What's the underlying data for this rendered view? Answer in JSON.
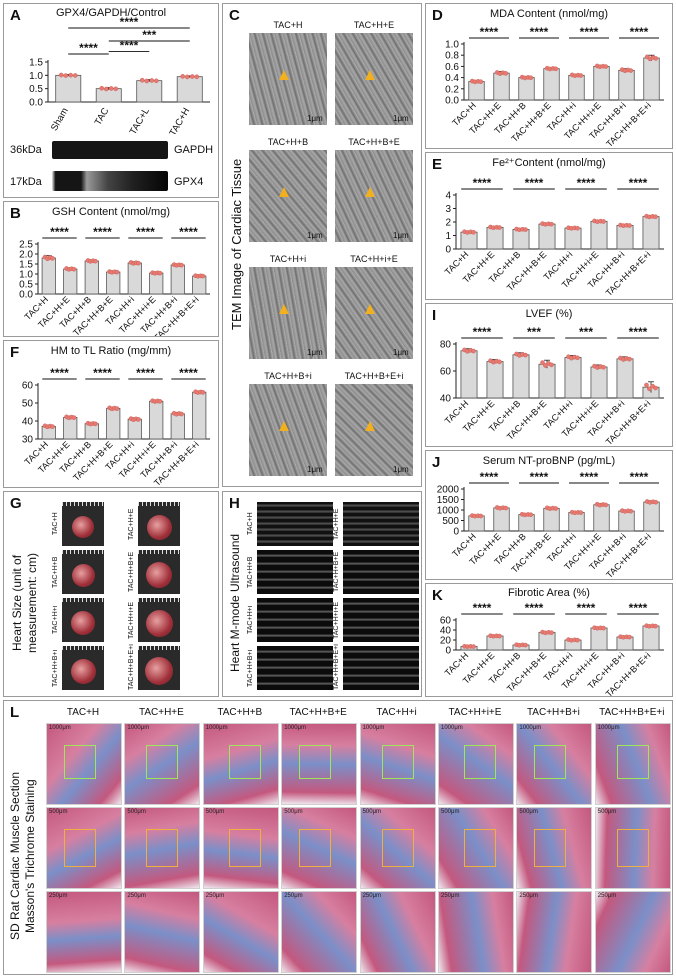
{
  "panels": {
    "A": {
      "letter": "A",
      "title": "GPX4/GAPDH/Control",
      "wb_kda_top": "36kDa",
      "wb_kda_bottom": "17kDa",
      "wb_label_top": "GAPDH",
      "wb_label_bottom": "GPX4"
    },
    "B": {
      "letter": "B"
    },
    "C": {
      "letter": "C",
      "side_title": "TEM Image of Cardiac Tissue",
      "tiles": [
        "TAC+H",
        "TAC+H+E",
        "TAC+H+B",
        "TAC+H+B+E",
        "TAC+H+i",
        "TAC+H+i+E",
        "TAC+H+B+i",
        "TAC+H+B+E+i"
      ],
      "scale_text": "1μm"
    },
    "D": {
      "letter": "D"
    },
    "E": {
      "letter": "E"
    },
    "F": {
      "letter": "F"
    },
    "G": {
      "letter": "G",
      "side_title": "Heart Size (unit of measurement: cm)",
      "tiles": [
        "TAC+H",
        "TAC+H+E",
        "TAC+H+B",
        "TAC+H+B+E",
        "TAC+H+i",
        "TAC+H+i+E",
        "TAC+H+B+i",
        "TAC+H+B+E+i"
      ]
    },
    "H": {
      "letter": "H",
      "side_title": "Heart M-mode Ultrasound",
      "tiles": [
        "TAC+H",
        "TAC+H+E",
        "TAC+H+B",
        "TAC+H+B+E",
        "TAC+H+i",
        "TAC+H+i+E",
        "TAC+H+B+i",
        "TAC+H+B+E+i"
      ]
    },
    "I": {
      "letter": "I"
    },
    "J": {
      "letter": "J"
    },
    "K": {
      "letter": "K"
    },
    "L": {
      "letter": "L",
      "side_title_1": "SD Rat Cardiac Muscle Section",
      "side_title_2": "Masson's Trichrome Staining",
      "columns": [
        "TAC+H",
        "TAC+H+E",
        "TAC+H+B",
        "TAC+H+B+E",
        "TAC+H+i",
        "TAC+H+i+E",
        "TAC+H+B+i",
        "TAC+H+B+E+i"
      ],
      "scales": [
        "1000μm",
        "500μm",
        "250μm"
      ]
    }
  },
  "colors": {
    "bar_fill": "#d9d9d9",
    "bar_stroke": "#555555",
    "dot": "#e87a72",
    "sig": "#111111",
    "masson_pink": "#c4587e",
    "masson_blue": "#7b8fc8",
    "box_green": "#9ee65a",
    "box_orange": "#f0b040"
  },
  "chart_data": [
    {
      "id": "A",
      "type": "bar",
      "title": "GPX4/GAPDH/Control",
      "categories": [
        "Sham",
        "TAC",
        "TAC+L",
        "TAC+H"
      ],
      "values": [
        1.0,
        0.5,
        0.8,
        0.95
      ],
      "errors": [
        0.03,
        0.04,
        0.04,
        0.03
      ],
      "ylim": [
        0,
        1.5
      ],
      "yticks": [
        0,
        0.5,
        1.0,
        1.5
      ],
      "ytick_labels": [
        "0.0",
        "0.5",
        "1.0",
        "1.5"
      ],
      "significance": [
        {
          "a": 0,
          "b": 1,
          "text": "****",
          "level": 0
        },
        {
          "a": 0,
          "b": 3,
          "text": "****",
          "level": 2
        },
        {
          "a": 1,
          "b": 3,
          "text": "***",
          "level": 1
        },
        {
          "a": 1,
          "b": 2,
          "text": "****",
          "level": 0.2
        }
      ]
    },
    {
      "id": "B",
      "type": "bar",
      "title": "GSH Content (nmol/mg)",
      "categories": [
        "TAC+H",
        "TAC+H+E",
        "TAC+H+B",
        "TAC+H+B+E",
        "TAC+H+i",
        "TAC+H+i+E",
        "TAC+H+B+i",
        "TAC+H+B+E+i"
      ],
      "values": [
        1.8,
        1.25,
        1.65,
        1.1,
        1.55,
        1.05,
        1.45,
        0.9
      ],
      "errors": [
        0.12,
        0.06,
        0.06,
        0.05,
        0.07,
        0.04,
        0.05,
        0.04
      ],
      "ylim": [
        0,
        2.5
      ],
      "yticks": [
        0,
        0.5,
        1.0,
        1.5,
        2.0,
        2.5
      ],
      "ytick_labels": [
        "0.0",
        "0.5",
        "1.0",
        "1.5",
        "2.0",
        "2.5"
      ],
      "significance": [
        {
          "a": 0,
          "b": 1,
          "text": "****"
        },
        {
          "a": 2,
          "b": 3,
          "text": "****"
        },
        {
          "a": 4,
          "b": 5,
          "text": "****"
        },
        {
          "a": 6,
          "b": 7,
          "text": "****"
        }
      ]
    },
    {
      "id": "D",
      "type": "bar",
      "title": "MDA Content (nmol/mg)",
      "categories": [
        "TAC+H",
        "TAC+H+E",
        "TAC+H+B",
        "TAC+H+B+E",
        "TAC+H+i",
        "TAC+H+i+E",
        "TAC+H+B+i",
        "TAC+H+B+E+i"
      ],
      "values": [
        0.33,
        0.48,
        0.4,
        0.56,
        0.44,
        0.6,
        0.53,
        0.75
      ],
      "errors": [
        0.02,
        0.03,
        0.02,
        0.02,
        0.02,
        0.02,
        0.03,
        0.05
      ],
      "ylim": [
        0,
        1.0
      ],
      "yticks": [
        0,
        0.2,
        0.4,
        0.6,
        0.8,
        1.0
      ],
      "ytick_labels": [
        "0.0",
        "0.2",
        "0.4",
        "0.6",
        "0.8",
        "1.0"
      ],
      "significance": [
        {
          "a": 0,
          "b": 1,
          "text": "****"
        },
        {
          "a": 2,
          "b": 3,
          "text": "****"
        },
        {
          "a": 4,
          "b": 5,
          "text": "****"
        },
        {
          "a": 6,
          "b": 7,
          "text": "****"
        }
      ]
    },
    {
      "id": "E",
      "type": "bar",
      "title": "Fe²⁺Content (nmol/mg)",
      "categories": [
        "TAC+H",
        "TAC+H+E",
        "TAC+H+B",
        "TAC+H+B+E",
        "TAC+H+i",
        "TAC+H+i+E",
        "TAC+H+B+i",
        "TAC+H+B+E+i"
      ],
      "values": [
        1.25,
        1.6,
        1.45,
        1.85,
        1.55,
        2.05,
        1.75,
        2.4
      ],
      "errors": [
        0.08,
        0.07,
        0.07,
        0.07,
        0.06,
        0.07,
        0.06,
        0.08
      ],
      "ylim": [
        0,
        4
      ],
      "yticks": [
        0,
        1,
        2,
        3,
        4
      ],
      "ytick_labels": [
        "0",
        "1",
        "2",
        "3",
        "4"
      ],
      "significance": [
        {
          "a": 0,
          "b": 1,
          "text": "****"
        },
        {
          "a": 2,
          "b": 3,
          "text": "****"
        },
        {
          "a": 4,
          "b": 5,
          "text": "****"
        },
        {
          "a": 6,
          "b": 7,
          "text": "****"
        }
      ]
    },
    {
      "id": "F",
      "type": "bar",
      "title": "HM to TL Ratio (mg/mm)",
      "categories": [
        "TAC+H",
        "TAC+H+E",
        "TAC+H+B",
        "TAC+H+B+E",
        "TAC+H+i",
        "TAC+H+i+E",
        "TAC+H+B+i",
        "TAC+H+B+E+i"
      ],
      "values": [
        37,
        42,
        38.5,
        47,
        41,
        51,
        44,
        56
      ],
      "errors": [
        0.8,
        0.8,
        0.6,
        0.8,
        0.8,
        0.6,
        0.8,
        0.6
      ],
      "ylim": [
        30,
        60
      ],
      "yticks": [
        30,
        40,
        50,
        60
      ],
      "ytick_labels": [
        "30",
        "40",
        "50",
        "60"
      ],
      "significance": [
        {
          "a": 0,
          "b": 1,
          "text": "****"
        },
        {
          "a": 2,
          "b": 3,
          "text": "****"
        },
        {
          "a": 4,
          "b": 5,
          "text": "****"
        },
        {
          "a": 6,
          "b": 7,
          "text": "****"
        }
      ]
    },
    {
      "id": "I",
      "type": "bar",
      "title": "LVEF (%)",
      "categories": [
        "TAC+H",
        "TAC+H+E",
        "TAC+H+B",
        "TAC+H+B+E",
        "TAC+H+i",
        "TAC+H+i+E",
        "TAC+H+B+i",
        "TAC+H+B+E+i"
      ],
      "values": [
        75,
        67,
        72,
        65,
        70,
        63,
        69,
        48
      ],
      "errors": [
        1.5,
        1.5,
        1.5,
        3,
        1.5,
        1.5,
        1.5,
        4
      ],
      "ylim": [
        40,
        80
      ],
      "yticks": [
        40,
        60,
        80
      ],
      "ytick_labels": [
        "40",
        "60",
        "80"
      ],
      "significance": [
        {
          "a": 0,
          "b": 1,
          "text": "****"
        },
        {
          "a": 2,
          "b": 3,
          "text": "***"
        },
        {
          "a": 4,
          "b": 5,
          "text": "***"
        },
        {
          "a": 6,
          "b": 7,
          "text": "****"
        }
      ]
    },
    {
      "id": "J",
      "type": "bar",
      "title": "Serum NT-proBNP (pg/mL)",
      "categories": [
        "TAC+H",
        "TAC+H+E",
        "TAC+H+B",
        "TAC+H+B+E",
        "TAC+H+i",
        "TAC+H+i+E",
        "TAC+H+B+i",
        "TAC+H+B+E+i"
      ],
      "values": [
        720,
        1100,
        780,
        1080,
        880,
        1250,
        950,
        1380
      ],
      "errors": [
        40,
        50,
        40,
        60,
        40,
        60,
        50,
        60
      ],
      "ylim": [
        0,
        2000
      ],
      "yticks": [
        0,
        500,
        1000,
        1500,
        2000
      ],
      "ytick_labels": [
        "0",
        "500",
        "1000",
        "1500",
        "2000"
      ],
      "significance": [
        {
          "a": 0,
          "b": 1,
          "text": "****"
        },
        {
          "a": 2,
          "b": 3,
          "text": "****"
        },
        {
          "a": 4,
          "b": 5,
          "text": "****"
        },
        {
          "a": 6,
          "b": 7,
          "text": "****"
        }
      ]
    },
    {
      "id": "K",
      "type": "bar",
      "title": "Fibrotic Area (%)",
      "categories": [
        "TAC+H",
        "TAC+H+E",
        "TAC+H+B",
        "TAC+H+B+E",
        "TAC+H+i",
        "TAC+H+i+E",
        "TAC+H+B+i",
        "TAC+H+B+E+i"
      ],
      "values": [
        7,
        28,
        10,
        35,
        20,
        44,
        26,
        48
      ],
      "errors": [
        1,
        1.5,
        1.5,
        2,
        2,
        1.5,
        1.5,
        1.5
      ],
      "ylim": [
        0,
        60
      ],
      "yticks": [
        0,
        20,
        40,
        60
      ],
      "ytick_labels": [
        "0",
        "20",
        "40",
        "60"
      ],
      "significance": [
        {
          "a": 0,
          "b": 1,
          "text": "****"
        },
        {
          "a": 2,
          "b": 3,
          "text": "****"
        },
        {
          "a": 4,
          "b": 5,
          "text": "****"
        },
        {
          "a": 6,
          "b": 7,
          "text": "****"
        }
      ]
    }
  ]
}
